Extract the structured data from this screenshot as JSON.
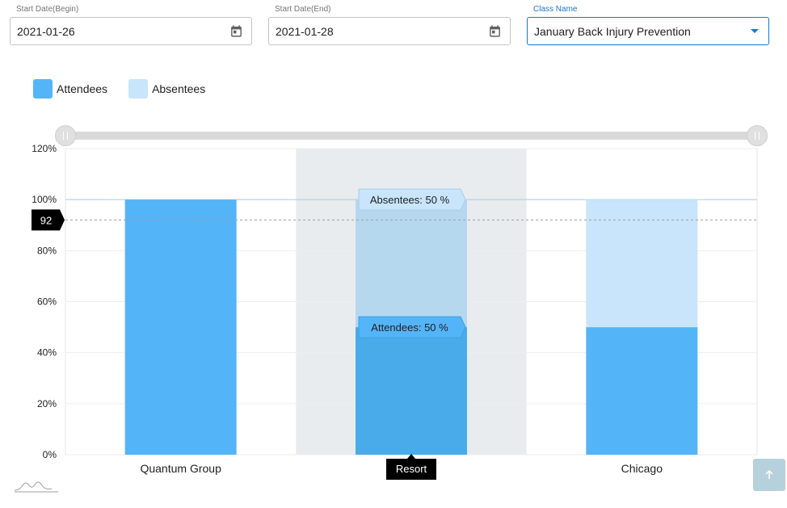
{
  "filters": {
    "start_begin": {
      "label": "Start Date(Begin)",
      "value": "2021-01-26",
      "icon": "calendar-icon"
    },
    "start_end": {
      "label": "Start Date(End)",
      "value": "2021-01-28",
      "icon": "calendar-icon"
    },
    "class_name": {
      "label": "Class Name",
      "value": "January Back Injury Prevention",
      "icon": "chevron-down-icon"
    }
  },
  "colors": {
    "attendees": "#54b4f8",
    "absentees": "#c8e5fb",
    "attendees_hover": "#49abea",
    "absentees_hover": "#b5d8ef",
    "highlight_band": "#e8ecef",
    "accent": "#1976d2"
  },
  "chart_data": {
    "type": "bar",
    "stacked": true,
    "categories": [
      "Quantum Group",
      "Resort",
      "Chicago"
    ],
    "series": [
      {
        "name": "Attendees",
        "values": [
          100,
          50,
          50
        ]
      },
      {
        "name": "Absentees",
        "values": [
          0,
          50,
          50
        ]
      }
    ],
    "ylim": [
      0,
      120
    ],
    "yticks": [
      "0%",
      "20%",
      "40%",
      "60%",
      "80%",
      "100%",
      "120%"
    ],
    "y_tick_values": [
      0,
      20,
      40,
      60,
      80,
      100,
      120
    ],
    "legend_position": "top-left",
    "highlighted_category": "Resort",
    "highlighted_index": 1,
    "crosshair": {
      "value": 92,
      "label": "92"
    },
    "tooltips": [
      "Absentees: 50 %",
      "Attendees: 50 %"
    ],
    "category_tooltip": "Resort"
  },
  "controls": {
    "zoom_icon": "arrow-up-icon",
    "navigator_icon": "mini-chart-icon"
  }
}
